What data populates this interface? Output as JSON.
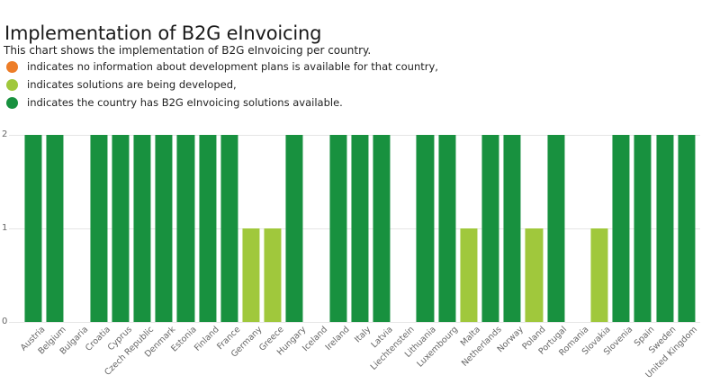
{
  "header": {
    "title": "Implementation of B2G eInvoicing",
    "subtitle": "This chart shows the implementation of B2G eInvoicing per country."
  },
  "legend": {
    "items": [
      {
        "name": "no-information",
        "color": "#ED7D28",
        "label": "indicates no information about development plans is available for that country,"
      },
      {
        "name": "being-developed",
        "color": "#A0C83C",
        "label": "indicates solutions are being developed,"
      },
      {
        "name": "solutions-available",
        "color": "#18913F",
        "label": "indicates the country has B2G eInvoicing solutions available."
      }
    ]
  },
  "chart_data": {
    "type": "bar",
    "title": "Implementation of B2G eInvoicing",
    "categories": [
      "Austria",
      "Belgium",
      "Bulgaria",
      "Croatia",
      "Cyprus",
      "Czech Republic",
      "Denmark",
      "Estonia",
      "Finland",
      "France",
      "Germany",
      "Greece",
      "Hungary",
      "Iceland",
      "Ireland",
      "Italy",
      "Latvia",
      "Liechtenstein",
      "Lithuania",
      "Luxembourg",
      "Malta",
      "Netherlands",
      "Norway",
      "Poland",
      "Portugal",
      "Romania",
      "Slovakia",
      "Slovenia",
      "Spain",
      "Sweden",
      "United Kingdom"
    ],
    "values": [
      2,
      2,
      0,
      2,
      2,
      2,
      2,
      2,
      2,
      2,
      1,
      1,
      2,
      0,
      2,
      2,
      2,
      0,
      2,
      2,
      1,
      2,
      2,
      1,
      2,
      0,
      1,
      2,
      2,
      2,
      2
    ],
    "xlabel": "",
    "ylabel": "",
    "ylim": [
      0,
      2
    ],
    "yticks": [
      0,
      1,
      2
    ],
    "grid": true,
    "grid_color": "#E6E6E6",
    "axis_label_color": "#666666",
    "legend_position": "top-left-as-text",
    "value_colors": {
      "1": "#A0C83C",
      "2": "#18913F"
    }
  }
}
